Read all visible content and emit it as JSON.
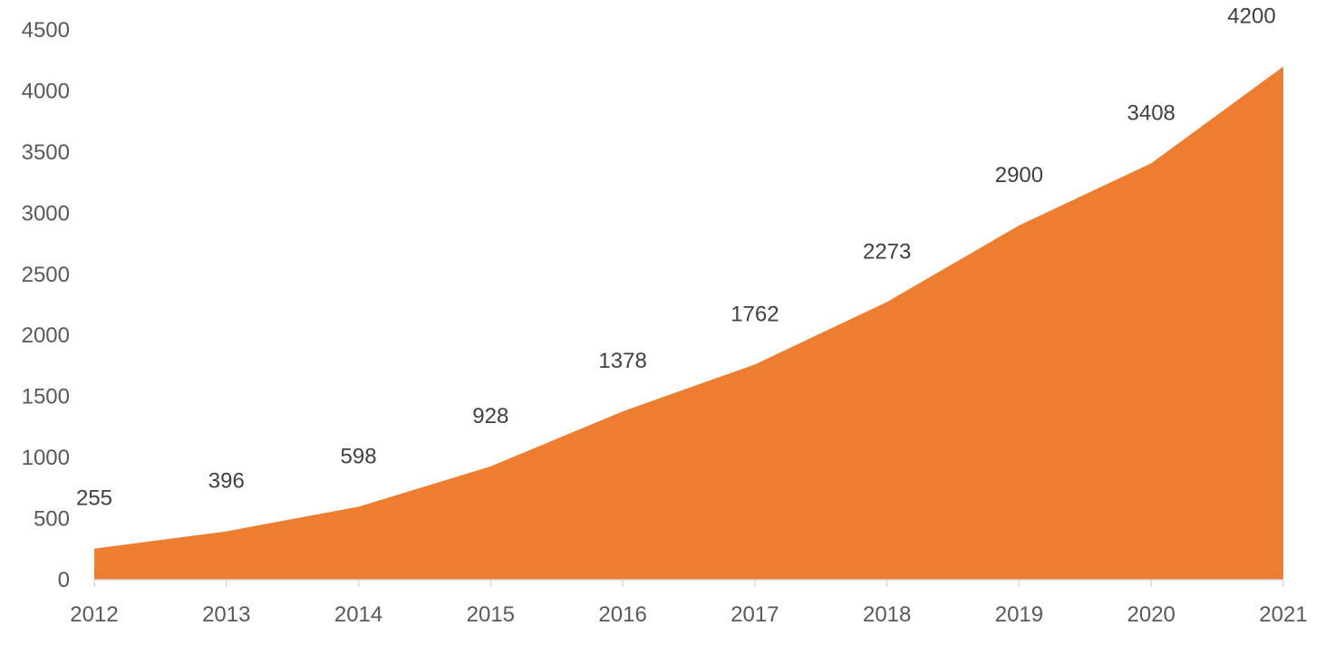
{
  "colors": {
    "area_fill": "#ED7D31",
    "axis_line": "#D9D9D9",
    "tick_text": "#595959",
    "label_text": "#404040",
    "background": "#FFFFFF"
  },
  "chart_data": {
    "type": "area",
    "title": "",
    "xlabel": "",
    "ylabel": "",
    "categories": [
      "2012",
      "2013",
      "2014",
      "2015",
      "2016",
      "2017",
      "2018",
      "2019",
      "2020",
      "2021"
    ],
    "series": [
      {
        "values": [
          255,
          396,
          598,
          928,
          1378,
          1762,
          2273,
          2900,
          3408,
          4200
        ]
      }
    ],
    "ylim": [
      0,
      4500
    ],
    "yticks": [
      0,
      500,
      1000,
      1500,
      2000,
      2500,
      3000,
      3500,
      4000,
      4500
    ],
    "data_labels": true,
    "grid": false,
    "legend": "none"
  }
}
